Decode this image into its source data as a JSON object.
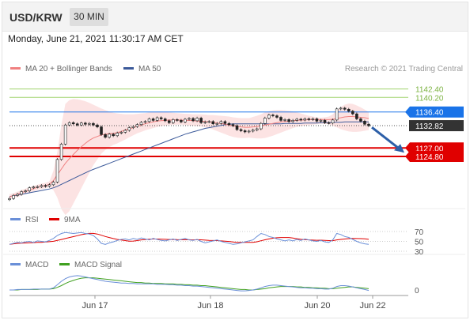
{
  "header": {
    "symbol": "USD/KRW",
    "timeframe": "30 MIN"
  },
  "datetime": "Monday, June 21, 2021 11:30:17 AM CET",
  "legend": {
    "ma_bb": "MA 20 + Bollinger Bands",
    "ma50": "MA 50",
    "rsi": "RSI",
    "rsi_ma": "9MA",
    "macd": "MACD",
    "macd_signal": "MACD Signal"
  },
  "credit": "Research © 2021 Trading Central",
  "colors": {
    "resistance": "#9fd36b",
    "pivot": "#1a73e8",
    "support": "#e00000",
    "price_tag": "#333333",
    "ma20": "#f08080",
    "ma50": "#3c5a9a",
    "band_fill": "#fbd9d9",
    "arrow": "#2d5fa8",
    "rsi_line": "#6a8fd8",
    "rsi_ma": "#e00000",
    "macd_line": "#6a8fd8",
    "macd_signal": "#40a020"
  },
  "levels": [
    {
      "label": "1142.40",
      "value": 1142.4,
      "kind": "resistance"
    },
    {
      "label": "1140.20",
      "value": 1140.2,
      "kind": "resistance"
    },
    {
      "label": "1136.40",
      "value": 1136.4,
      "kind": "pivot"
    },
    {
      "label": "1132.82",
      "value": 1132.82,
      "kind": "price"
    },
    {
      "label": "1127.00",
      "value": 1127.0,
      "kind": "support"
    },
    {
      "label": "1124.80",
      "value": 1124.8,
      "kind": "support"
    }
  ],
  "chart_data": {
    "type": "line",
    "title": "USD/KRW",
    "ylim": [
      1112,
      1145
    ],
    "price": [
      1113.8,
      1114.6,
      1114.9,
      1115.6,
      1115.8,
      1116.6,
      1116.8,
      1116.9,
      1117.2,
      1117.0,
      1117.4,
      1118.1,
      1124,
      1128,
      1133.0,
      1133.6,
      1133.3,
      1133.0,
      1133.5,
      1133.2,
      1133.4,
      1133.0,
      1132.5,
      1130.5,
      1129.8,
      1130.6,
      1130.2,
      1130.9,
      1131.1,
      1131.6,
      1132.3,
      1132.6,
      1133.1,
      1133.7,
      1133.9,
      1134.6,
      1134.2,
      1134.9,
      1134.6,
      1134.1,
      1133.6,
      1134.4,
      1134.2,
      1133.8,
      1134.5,
      1134.7,
      1134.1,
      1134.8,
      1133.6,
      1133.8,
      1133.9,
      1133.3,
      1133.4,
      1133.9,
      1133.4,
      1133.1,
      1132.8,
      1131.8,
      1131.5,
      1131.2,
      1131.4,
      1131.7,
      1132.0,
      1133.4,
      1134.8,
      1135.6,
      1135.4,
      1135.0,
      1134.2,
      1134.4,
      1133.9,
      1134.2,
      1134.5,
      1134.3,
      1134.6,
      1134.4,
      1134.6,
      1134.0,
      1134.2,
      1133.6,
      1133.5,
      1134.3,
      1137.2,
      1137.4,
      1137.1,
      1136.6,
      1135.9,
      1134.6,
      1134.0,
      1133.2,
      1132.8
    ],
    "ma20": [
      1114.2,
      1114.6,
      1114.9,
      1115.3,
      1115.7,
      1116.0,
      1116.4,
      1116.7,
      1117.0,
      1117.2,
      1117.5,
      1118.5,
      1120,
      1121.5,
      1123.0,
      1124.2,
      1125.3,
      1126.4,
      1127.3,
      1128.2,
      1129.0,
      1129.6,
      1130.0,
      1130.4,
      1130.6,
      1130.7,
      1130.8,
      1131.0,
      1131.3,
      1131.7,
      1132.0,
      1132.3,
      1132.7,
      1133.0,
      1133.3,
      1133.6,
      1133.8,
      1134.0,
      1134.1,
      1134.2,
      1134.3,
      1134.3,
      1134.3,
      1134.3,
      1134.2,
      1134.2,
      1134.1,
      1134.0,
      1134.0,
      1133.9,
      1133.8,
      1133.7,
      1133.5,
      1133.4,
      1133.2,
      1133.0,
      1132.8,
      1132.6,
      1132.5,
      1132.4,
      1132.4,
      1132.5,
      1132.6,
      1132.8,
      1133.0,
      1133.2,
      1133.4,
      1133.6,
      1133.8,
      1133.9,
      1134.0,
      1134.1,
      1134.2,
      1134.3,
      1134.3,
      1134.4,
      1134.4,
      1134.4,
      1134.4,
      1134.4,
      1134.4,
      1134.5,
      1134.7,
      1134.9,
      1135.1,
      1135.2,
      1135.2,
      1135.1,
      1135.0,
      1134.9,
      1134.7
    ],
    "band_upper": [
      1114.9,
      1115.2,
      1115.6,
      1116.0,
      1116.4,
      1116.7,
      1117.1,
      1117.4,
      1117.7,
      1117.9,
      1118.3,
      1121,
      1126,
      1133,
      1138.5,
      1139.5,
      1139.8,
      1139.7,
      1139.5,
      1139.2,
      1138.8,
      1138.3,
      1137.8,
      1137.3,
      1136.9,
      1136.5,
      1136.2,
      1136.0,
      1135.9,
      1135.8,
      1135.8,
      1135.8,
      1135.9,
      1136.0,
      1136.1,
      1136.3,
      1136.4,
      1136.5,
      1136.5,
      1136.4,
      1136.3,
      1136.2,
      1136.1,
      1136.0,
      1135.9,
      1135.9,
      1135.8,
      1135.8,
      1135.8,
      1135.7,
      1135.6,
      1135.6,
      1135.5,
      1135.4,
      1135.3,
      1135.2,
      1135.0,
      1134.9,
      1134.8,
      1134.8,
      1134.8,
      1135.1,
      1135.4,
      1135.8,
      1136.3,
      1136.6,
      1136.8,
      1136.9,
      1136.9,
      1136.8,
      1136.7,
      1136.5,
      1136.3,
      1136.0,
      1135.7,
      1135.4,
      1135.2,
      1135.0,
      1134.9,
      1135.0,
      1135.2,
      1135.8,
      1136.8,
      1137.7,
      1138.3,
      1138.6,
      1138.5,
      1138.1,
      1137.6,
      1137.0,
      1136.4
    ],
    "band_lower": [
      1113.5,
      1114.0,
      1114.2,
      1114.6,
      1115.0,
      1115.3,
      1115.7,
      1116.0,
      1116.3,
      1116.5,
      1116.7,
      1116,
      1114,
      1111,
      1109.5,
      1110.5,
      1112.5,
      1114.5,
      1116.5,
      1118.5,
      1120.5,
      1122.5,
      1124.0,
      1125.5,
      1126.5,
      1127.2,
      1127.8,
      1128.2,
      1128.7,
      1129.2,
      1129.8,
      1130.3,
      1130.8,
      1131.2,
      1131.6,
      1131.9,
      1132.2,
      1132.5,
      1132.7,
      1132.9,
      1133.0,
      1133.1,
      1133.1,
      1133.1,
      1133.0,
      1132.9,
      1132.8,
      1132.7,
      1132.6,
      1132.4,
      1132.2,
      1131.8,
      1131.4,
      1131.0,
      1130.6,
      1130.2,
      1129.9,
      1129.7,
      1129.6,
      1129.6,
      1129.7,
      1129.6,
      1129.5,
      1129.5,
      1129.6,
      1129.9,
      1130.2,
      1130.6,
      1131.0,
      1131.4,
      1131.8,
      1132.2,
      1132.5,
      1132.7,
      1132.9,
      1133.0,
      1133.1,
      1133.2,
      1133.3,
      1133.3,
      1133.2,
      1132.8,
      1132.4,
      1131.9,
      1131.6,
      1131.3,
      1131.2,
      1131.2,
      1131.3,
      1131.5,
      1131.7
    ],
    "ma50": [
      1114.3,
      1114.5,
      1114.7,
      1114.9,
      1115.1,
      1115.3,
      1115.5,
      1115.7,
      1115.9,
      1116.1,
      1116.3,
      1116.6,
      1117.0,
      1117.5,
      1118.0,
      1118.5,
      1119.0,
      1119.5,
      1120.0,
      1120.5,
      1121.0,
      1121.4,
      1121.8,
      1122.2,
      1122.6,
      1123.0,
      1123.4,
      1123.8,
      1124.2,
      1124.6,
      1125.0,
      1125.4,
      1125.8,
      1126.2,
      1126.6,
      1127.0,
      1127.4,
      1127.8,
      1128.2,
      1128.6,
      1129.0,
      1129.4,
      1129.8,
      1130.2,
      1130.6,
      1130.9,
      1131.2,
      1131.5,
      1131.8,
      1132.1,
      1132.3,
      1132.5,
      1132.7,
      1132.9,
      1133.1,
      1133.2,
      1133.3,
      1133.3,
      1133.3,
      1133.3,
      1133.3,
      1133.3,
      1133.3,
      1133.3,
      1133.3,
      1133.3,
      1133.3,
      1133.3,
      1133.3,
      1133.4,
      1133.4,
      1133.4,
      1133.4,
      1133.4,
      1133.5,
      1133.5,
      1133.5,
      1133.5,
      1133.6,
      1133.6,
      1133.6,
      1133.7,
      1133.7,
      1133.7,
      1133.8,
      1133.8,
      1133.8,
      1133.8,
      1133.8,
      1133.8,
      1133.8
    ],
    "x_labels": [
      "Jun 17",
      "Jun 18",
      "Jun 20",
      "Jun 22"
    ],
    "rsi": {
      "ticks": [
        "70",
        "50",
        "30"
      ],
      "values": [
        44,
        46,
        48,
        47,
        49,
        50,
        48,
        51,
        50,
        49,
        52,
        56,
        62,
        66,
        68,
        67,
        66,
        67,
        68,
        66,
        65,
        62,
        55,
        46,
        44,
        47,
        49,
        52,
        54,
        55,
        53,
        56,
        54,
        57,
        55,
        53,
        56,
        54,
        52,
        51,
        53,
        55,
        52,
        54,
        56,
        53,
        52,
        54,
        50,
        47,
        49,
        51,
        53,
        50,
        48,
        46,
        44,
        45,
        47,
        49,
        51,
        53,
        60,
        66,
        64,
        60,
        58,
        55,
        53,
        51,
        53,
        51,
        54,
        52,
        55,
        53,
        51,
        50,
        52,
        49,
        48,
        53,
        66,
        64,
        60,
        58,
        54,
        50,
        47,
        45,
        44
      ]
    },
    "macd": {
      "ticks": [
        "0"
      ],
      "macd": [
        0.0,
        0.0,
        0.1,
        0.1,
        0.1,
        0.1,
        0.2,
        0.2,
        0.2,
        0.2,
        0.2,
        0.5,
        1.2,
        2.0,
        2.6,
        3.0,
        3.2,
        3.3,
        3.2,
        3.0,
        2.8,
        2.6,
        2.4,
        2.2,
        2.0,
        1.9,
        1.8,
        1.7,
        1.6,
        1.6,
        1.5,
        1.5,
        1.4,
        1.4,
        1.4,
        1.4,
        1.4,
        1.3,
        1.3,
        1.3,
        1.2,
        1.2,
        1.1,
        1.1,
        1.0,
        1.0,
        0.9,
        0.9,
        0.8,
        0.7,
        0.6,
        0.5,
        0.4,
        0.3,
        0.2,
        0.1,
        0.0,
        -0.1,
        -0.2,
        -0.2,
        -0.1,
        0.0,
        0.2,
        0.5,
        0.8,
        1.0,
        1.1,
        1.1,
        1.0,
        0.9,
        0.8,
        0.7,
        0.6,
        0.5,
        0.5,
        0.4,
        0.4,
        0.3,
        0.3,
        0.2,
        0.2,
        0.4,
        0.8,
        1.0,
        1.0,
        0.9,
        0.7,
        0.5,
        0.3,
        0.1,
        -0.1
      ],
      "signal": [
        0.0,
        0.0,
        0.0,
        0.1,
        0.1,
        0.1,
        0.1,
        0.1,
        0.2,
        0.2,
        0.2,
        0.3,
        0.6,
        1.0,
        1.5,
        1.9,
        2.2,
        2.5,
        2.7,
        2.8,
        2.8,
        2.8,
        2.7,
        2.6,
        2.5,
        2.4,
        2.3,
        2.2,
        2.1,
        2.0,
        1.9,
        1.8,
        1.7,
        1.7,
        1.6,
        1.6,
        1.5,
        1.5,
        1.5,
        1.4,
        1.4,
        1.4,
        1.3,
        1.3,
        1.2,
        1.2,
        1.1,
        1.1,
        1.0,
        1.0,
        0.9,
        0.8,
        0.7,
        0.6,
        0.5,
        0.4,
        0.3,
        0.2,
        0.1,
        0.1,
        0.0,
        0.0,
        0.1,
        0.2,
        0.3,
        0.5,
        0.6,
        0.7,
        0.8,
        0.8,
        0.8,
        0.8,
        0.7,
        0.7,
        0.6,
        0.6,
        0.5,
        0.5,
        0.4,
        0.4,
        0.3,
        0.3,
        0.4,
        0.5,
        0.6,
        0.7,
        0.7,
        0.6,
        0.5,
        0.4,
        0.3
      ]
    }
  }
}
